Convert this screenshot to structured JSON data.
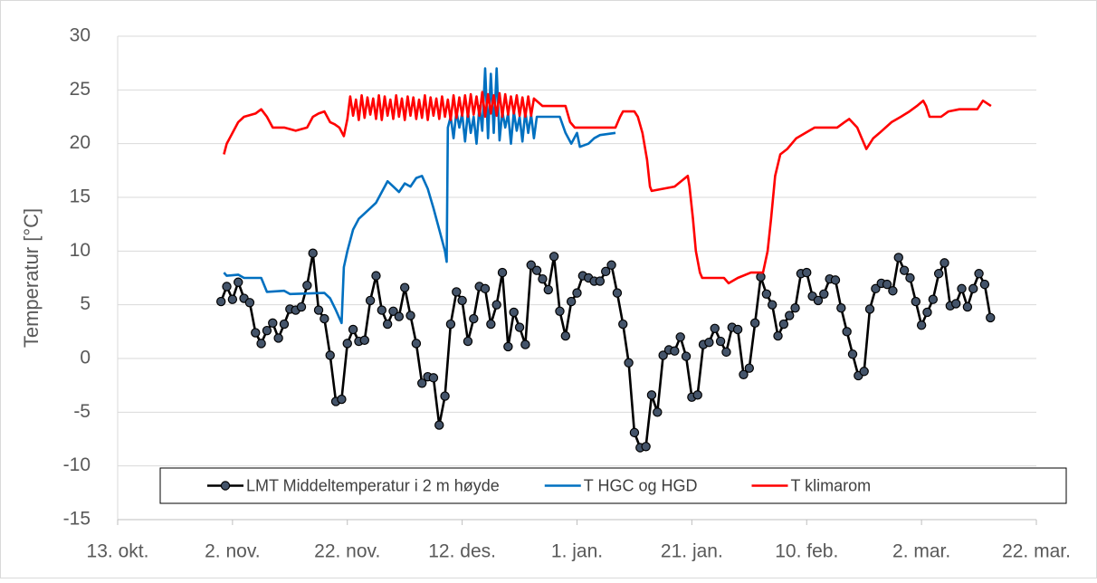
{
  "chart_data": {
    "type": "line",
    "y_label": "Temperatur [°C]",
    "ylim": [
      -15,
      30
    ],
    "yticks": [
      -15,
      -10,
      -5,
      0,
      5,
      10,
      15,
      20,
      25,
      30
    ],
    "xlim": [
      0,
      160
    ],
    "xticks": [
      {
        "value": 0,
        "label": "13. okt."
      },
      {
        "value": 20,
        "label": "2. nov."
      },
      {
        "value": 40,
        "label": "22. nov."
      },
      {
        "value": 60,
        "label": "12. des."
      },
      {
        "value": 80,
        "label": "1. jan."
      },
      {
        "value": 100,
        "label": "21. jan."
      },
      {
        "value": 120,
        "label": "10. feb."
      },
      {
        "value": 140,
        "label": "2. mar."
      },
      {
        "value": 160,
        "label": "22. mar."
      }
    ],
    "grid": true,
    "legend": "lower center",
    "series": [
      {
        "name": "LMT Middeltemperatur i 2 m høyde",
        "color": "#000000",
        "marker_color": "#44546a",
        "x": [
          18,
          19,
          20,
          21,
          22,
          23,
          24,
          25,
          26,
          27,
          28,
          29,
          30,
          31,
          32,
          33,
          34,
          35,
          36,
          37,
          38,
          39,
          40,
          41,
          42,
          43,
          44,
          45,
          46,
          47,
          48,
          49,
          50,
          51,
          52,
          53,
          54,
          55,
          56,
          57,
          58,
          59,
          60,
          61,
          62,
          63,
          64,
          65,
          66,
          67,
          68,
          69,
          70,
          71,
          72,
          73,
          74,
          75,
          76,
          77,
          78,
          79,
          80,
          81,
          82,
          83,
          84,
          85,
          86,
          87,
          88,
          89,
          90,
          91,
          92,
          93,
          94,
          95,
          96,
          97,
          98,
          99,
          100,
          101,
          102,
          103,
          104,
          105,
          106,
          107,
          108,
          109,
          110,
          111,
          112,
          113,
          114,
          115,
          116,
          117,
          118,
          119,
          120,
          121,
          122,
          123,
          124,
          125,
          126,
          127,
          128,
          129,
          130,
          131,
          132,
          133,
          134,
          135,
          136,
          137,
          138,
          139,
          140,
          141,
          142,
          143,
          144,
          145,
          146,
          147,
          148,
          149,
          150,
          151,
          152
        ],
        "values": [
          5.3,
          6.7,
          5.5,
          7.1,
          5.6,
          5.2,
          2.4,
          1.4,
          2.6,
          3.3,
          1.9,
          3.2,
          4.6,
          4.5,
          4.8,
          6.8,
          9.8,
          4.5,
          3.7,
          0.3,
          -4.0,
          -3.8,
          1.4,
          2.7,
          1.6,
          1.7,
          5.4,
          7.7,
          4.5,
          3.2,
          4.4,
          3.9,
          6.6,
          4.0,
          1.4,
          -2.3,
          -1.7,
          -1.8,
          -6.2,
          -3.5,
          3.2,
          6.2,
          5.4,
          1.6,
          3.7,
          6.7,
          6.5,
          3.2,
          5.0,
          8.0,
          1.1,
          4.3,
          2.9,
          1.3,
          8.7,
          8.2,
          7.4,
          6.4,
          9.5,
          4.4,
          2.1,
          5.3,
          6.1,
          7.7,
          7.5,
          7.2,
          7.2,
          8.1,
          8.7,
          6.1,
          3.2,
          -0.4,
          -6.9,
          -8.3,
          -8.2,
          -3.4,
          -5.0,
          0.3,
          0.8,
          0.7,
          2.0,
          0.2,
          -3.6,
          -3.4,
          1.3,
          1.5,
          2.8,
          1.6,
          0.6,
          2.9,
          2.7,
          -1.5,
          -0.9,
          3.3,
          7.6,
          6.0,
          5.0,
          2.1,
          3.2,
          4.0,
          4.7,
          7.9,
          8.0,
          5.8,
          5.4,
          6.0,
          7.4,
          7.3,
          4.7,
          2.5,
          0.4,
          -1.6,
          -1.2,
          4.6,
          6.5,
          7.0,
          6.9,
          6.3,
          9.4,
          8.2,
          7.5,
          5.3,
          3.1,
          4.3,
          5.5,
          7.9,
          8.9,
          4.9,
          5.1,
          6.5,
          4.8,
          6.5,
          7.9,
          6.9,
          3.8
        ]
      },
      {
        "name": "T HGC og HGD",
        "color": "#0070c0",
        "x": [
          18.5,
          19,
          21,
          22,
          25,
          26,
          29,
          30,
          36,
          37,
          38,
          39,
          39.4,
          40,
          41,
          42,
          43,
          44,
          45,
          46,
          47,
          48,
          49,
          50,
          51,
          52,
          53,
          54,
          55,
          56,
          57,
          57.3,
          57.5,
          58,
          58.5,
          59,
          59.5,
          60,
          60.5,
          61,
          61.5,
          62,
          62.5,
          63,
          63.5,
          64,
          64.5,
          65,
          65.5,
          66,
          66.5,
          67,
          67.5,
          68,
          68.5,
          69,
          69.5,
          70,
          70.5,
          71,
          71.5,
          72,
          72.5,
          73,
          77,
          78,
          79,
          80,
          80.5,
          82,
          83,
          84,
          86.7
        ],
        "values": [
          8,
          7.7,
          7.8,
          7.5,
          7.5,
          6.2,
          6.3,
          6,
          6.1,
          5.6,
          4.5,
          3.3,
          8.5,
          10,
          12,
          13,
          13.5,
          14,
          14.5,
          15.5,
          16.5,
          16,
          15.5,
          16.3,
          16,
          16.8,
          17,
          15.8,
          14,
          12,
          10,
          9,
          21.5,
          22.5,
          20.5,
          23,
          21.5,
          22.8,
          20.2,
          23,
          21,
          22.5,
          20,
          23.5,
          21.2,
          27,
          20.5,
          26.5,
          21,
          27,
          20.3,
          23,
          21.5,
          22.8,
          20,
          23,
          21.2,
          22.5,
          20.2,
          23,
          21,
          22.7,
          20.5,
          22.5,
          22.5,
          21,
          20,
          21,
          19.7,
          20,
          20.5,
          20.8,
          21
        ]
      },
      {
        "name": "T klimarom",
        "color": "#ff0000",
        "x": [
          18.5,
          19,
          20,
          21,
          22,
          24,
          25,
          26,
          27,
          29,
          31,
          33,
          34,
          35,
          36,
          37,
          37.8,
          38.6,
          39.4,
          40,
          40.5,
          41,
          41.5,
          42,
          42.5,
          43,
          43.5,
          44,
          44.5,
          45,
          45.5,
          46,
          46.5,
          47,
          47.5,
          48,
          48.5,
          49,
          49.5,
          50,
          50.5,
          51,
          51.5,
          52,
          52.5,
          53,
          53.5,
          54,
          54.5,
          55,
          55.5,
          56,
          56.5,
          57,
          57.5,
          58,
          58.5,
          59,
          59.5,
          60,
          60.5,
          61,
          61.5,
          62,
          62.5,
          63,
          63.5,
          64,
          64.5,
          65,
          65.5,
          66,
          66.5,
          67,
          67.5,
          68,
          68.5,
          69,
          69.5,
          70,
          70.5,
          71,
          71.5,
          72,
          72.5,
          74,
          78,
          78.8,
          79.6,
          86.7,
          87.5,
          88,
          90,
          90.6,
          91.4,
          92.2,
          92.7,
          93,
          97,
          99.3,
          99.6,
          100.2,
          100.7,
          101.4,
          101.8,
          105.6,
          106.4,
          108,
          110.3,
          112.4,
          113.2,
          113.8,
          114.5,
          115.4,
          116.6,
          118.2,
          119.8,
          121.4,
          125.3,
          126.6,
          127.4,
          128.8,
          129.6,
          130.4,
          131.6,
          132.7,
          134.8,
          136.4,
          137.9,
          139.2,
          140.3,
          140.8,
          141.4,
          143.4,
          144.7,
          146.6,
          149.7,
          150.7,
          152.1
        ],
        "values": [
          19,
          20,
          21,
          22,
          22.5,
          22.8,
          23.2,
          22.5,
          21.5,
          21.5,
          21.2,
          21.5,
          22.5,
          22.8,
          23,
          22,
          21.8,
          21.5,
          20.7,
          22.3,
          24.4,
          22.6,
          24.1,
          22.2,
          24.5,
          22.4,
          24.3,
          22.7,
          24.2,
          22.3,
          24.5,
          22.2,
          24.4,
          22.6,
          24.1,
          22.3,
          24.5,
          22.5,
          24.2,
          22.2,
          24.4,
          22.6,
          24.3,
          22.3,
          24.1,
          22.4,
          24.5,
          22.2,
          24.3,
          22.6,
          24.2,
          22.3,
          24.4,
          22.5,
          24.1,
          22.2,
          24.5,
          22.4,
          24.3,
          22.6,
          24.5,
          22.5,
          24.6,
          22.7,
          24.4,
          22.6,
          24.8,
          22.5,
          24.6,
          22.8,
          24.5,
          22.6,
          24.7,
          22.5,
          24.6,
          22.7,
          24.4,
          22.8,
          24.5,
          22.6,
          24.3,
          22.5,
          24.4,
          22.6,
          24.2,
          23.5,
          23.5,
          22,
          21.5,
          21.5,
          22.5,
          23,
          23,
          22.5,
          21,
          18.5,
          16,
          15.6,
          16,
          17,
          16,
          13,
          10,
          8,
          7.5,
          7.5,
          7,
          7.5,
          8,
          8,
          10,
          13,
          17,
          19,
          19.5,
          20.5,
          21,
          21.5,
          21.5,
          22,
          22.3,
          21.5,
          20.5,
          19.5,
          20.5,
          21,
          22,
          22.5,
          23,
          23.5,
          24,
          23.5,
          22.5,
          22.5,
          23,
          23.2,
          23.2,
          24,
          23.5
        ]
      }
    ]
  }
}
